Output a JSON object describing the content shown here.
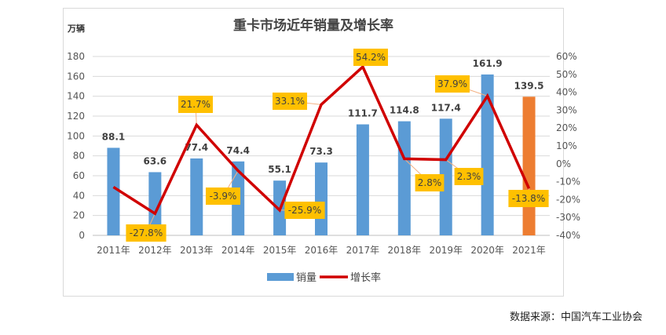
{
  "chart_data": {
    "type": "bar+line",
    "title": "重卡市场近年销量及增长率",
    "ylabel": "万辆",
    "categories": [
      "2011年",
      "2012年",
      "2013年",
      "2014年",
      "2015年",
      "2016年",
      "2017年",
      "2018年",
      "2019年",
      "2020年",
      "2021年"
    ],
    "ylim": [
      0,
      180
    ],
    "yticks": [
      "0",
      "20",
      "40",
      "60",
      "80",
      "100",
      "120",
      "140",
      "160",
      "180"
    ],
    "y2lim": [
      -40,
      60
    ],
    "y2ticks": [
      "-40%",
      "-30%",
      "-20%",
      "-10%",
      "0%",
      "10%",
      "20%",
      "30%",
      "40%",
      "50%",
      "60%"
    ],
    "grid": true,
    "legend_position": "bottom",
    "series": [
      {
        "name": "销量",
        "type": "bar",
        "axis": "left",
        "color": "#5B9BD5",
        "highlight_color": "#ED7D31",
        "values": [
          88.1,
          63.6,
          77.4,
          74.4,
          55.1,
          73.3,
          111.7,
          114.8,
          117.4,
          161.9,
          139.5
        ],
        "labels": [
          "88.1",
          "63.6",
          "77.4",
          "74.4",
          "55.1",
          "73.3",
          "111.7",
          "114.8",
          "117.4",
          "161.9",
          "139.5"
        ]
      },
      {
        "name": "增长率",
        "type": "line",
        "axis": "right",
        "color": "#D00000",
        "values": [
          -13,
          -27.8,
          21.7,
          -3.9,
          -25.9,
          33.1,
          54.2,
          2.8,
          2.3,
          37.9,
          -13.8
        ],
        "labels": [
          null,
          "-27.8%",
          "21.7%",
          "-3.9%",
          "-25.9%",
          "33.1%",
          "54.2%",
          "2.8%",
          "2.3%",
          "37.9%",
          "-13.8%"
        ],
        "label_bg": "#FFC000"
      }
    ]
  },
  "source": "数据来源：中国汽车工业协会"
}
